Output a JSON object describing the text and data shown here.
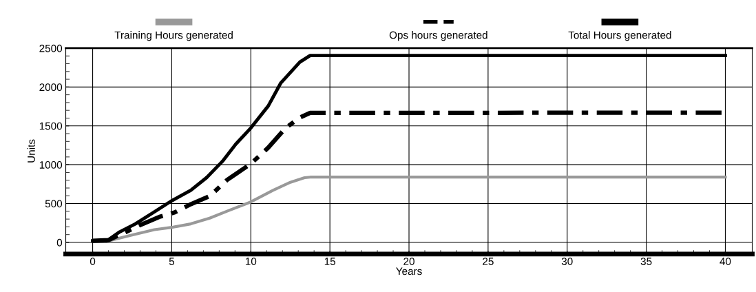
{
  "chart_data": {
    "type": "line",
    "xlabel": "Years",
    "ylabel": "Units",
    "xlim": [
      -1.7,
      41.7
    ],
    "ylim": [
      -150,
      2500
    ],
    "xticks": [
      0,
      5,
      10,
      15,
      20,
      25,
      30,
      35,
      40
    ],
    "yticks": [
      0,
      500,
      1000,
      1500,
      2000,
      2500
    ],
    "grid": true,
    "legend": "top",
    "series": [
      {
        "name": "Training Hours generated",
        "color": "#999999",
        "line_style": "solid",
        "x": [
          0,
          1,
          2.4,
          3.9,
          5,
          6.2,
          7.4,
          8.5,
          10,
          11.4,
          12.5,
          13.4,
          13.75,
          40
        ],
        "values": [
          20,
          20,
          90,
          164,
          193,
          238,
          312,
          402,
          521,
          670,
          774,
          833,
          840,
          840
        ]
      },
      {
        "name": "Ops hours generated",
        "color": "#000000",
        "line_style": "dashdot",
        "x": [
          0,
          1,
          2.1,
          3,
          4.2,
          5.2,
          6.2,
          7.4,
          8.5,
          10,
          11.1,
          12.2,
          13.1,
          13.75,
          40
        ],
        "values": [
          20,
          30,
          134,
          223,
          327,
          387,
          491,
          595,
          804,
          1012,
          1220,
          1473,
          1607,
          1667,
          1670
        ]
      },
      {
        "name": "Total Hours generated",
        "color": "#000000",
        "line_style": "solid",
        "x": [
          0,
          0.9,
          1.7,
          2.7,
          3.86,
          5,
          6.2,
          7.2,
          8.2,
          9.05,
          10,
          11.1,
          11.9,
          13.1,
          13.75,
          40
        ],
        "values": [
          20,
          20,
          134,
          238,
          387,
          536,
          670,
          833,
          1042,
          1265,
          1473,
          1756,
          2054,
          2321,
          2405,
          2405
        ]
      }
    ]
  }
}
